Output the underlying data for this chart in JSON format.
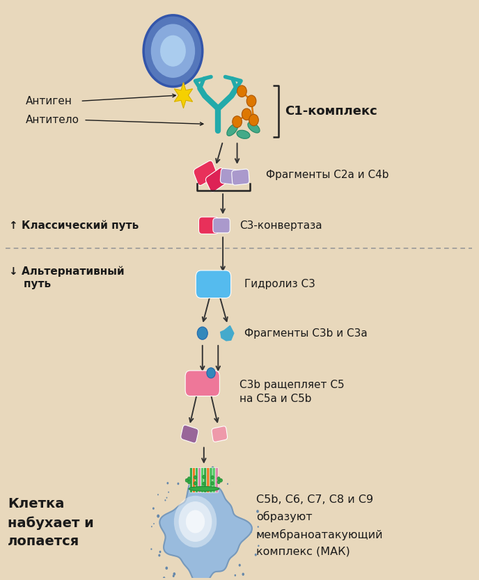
{
  "background_color": "#e8d8bc",
  "fig_width": 6.88,
  "fig_height": 8.34,
  "dpi": 100,
  "labels": {
    "antigen": "Антиген",
    "antibody": "Антитело",
    "c1_complex": "С1-комплекс",
    "fragments_c2a_c4b": "Фрагменты С2а и С4b",
    "classical_path": "↑ Классический путь",
    "c3_convertase": "С3-конвертаза",
    "alternative_path": "↓ Альтернативный\n    путь",
    "c3_hydrolysis": "Гидролиз С3",
    "fragments_c3b_c3a": "Фрагменты С3b и С3а",
    "c3b_cleaves": "С3b ращепляет С5\nна С5а и С5b",
    "cell_swells": "Клетка\nнабухает и\nлопается",
    "mac_complex": "С5b, С6, С7, С8 и С9\nобразуют\nмембраноатакующий\nкомплекс (МАК)"
  },
  "colors": {
    "bg": "#e8d8bc",
    "text_dark": "#1a1a1a",
    "arrow": "#333333",
    "cell_outer": "#5577bb",
    "cell_inner": "#88aadd",
    "cell_nucleus": "#aaccee",
    "star_yellow": "#f5d000",
    "star_edge": "#c8a000",
    "antibody_teal": "#22aaaa",
    "antibody_edge": "#118888",
    "orange_head": "#dd7700",
    "green_tail": "#44aa88",
    "pink_cap1": "#e8305a",
    "pink_cap2": "#dd2255",
    "lavender_cap": "#aa99cc",
    "blue_capsule": "#55bbee",
    "blue_small": "#3388bb",
    "teal_fragment": "#44aacc",
    "pink_large": "#ee7799",
    "purple_small": "#996699",
    "pink_small": "#ee99aa",
    "cell2_body": "#99bbdd",
    "cell2_highlight": "#cce0ff",
    "mac_green1": "#33aa44",
    "mac_green2": "#44bb55",
    "mac_green3": "#55cc66",
    "mac_orange": "#ee7722",
    "mac_pink": "#dd88aa",
    "dashed": "#999999",
    "bracket": "#222222"
  }
}
